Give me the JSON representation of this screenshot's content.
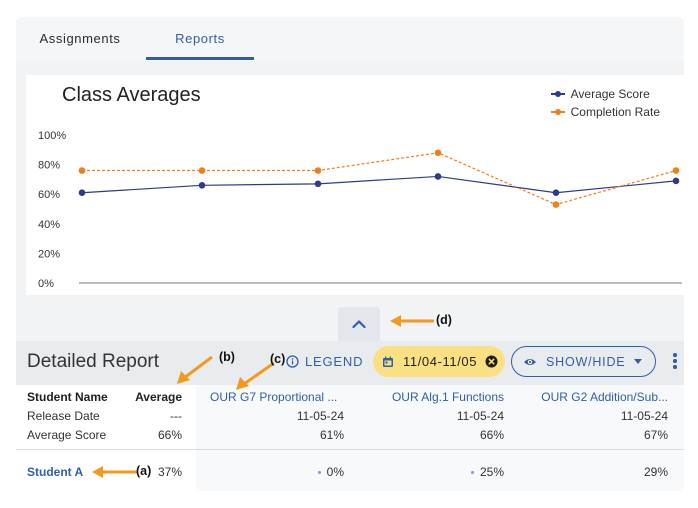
{
  "tabs": [
    {
      "label": "Assignments"
    },
    {
      "label": "Reports"
    }
  ],
  "chart": {
    "title": "Class Averages",
    "legend": [
      "Average Score",
      "Completion Rate"
    ]
  },
  "chart_data": {
    "type": "line",
    "title": "Class Averages",
    "yticks": [
      "100%",
      "80%",
      "60%",
      "40%",
      "20%",
      "0%"
    ],
    "ylim": [
      0,
      100
    ],
    "x": [
      1,
      2,
      3,
      4,
      5,
      6
    ],
    "series": [
      {
        "name": "Average Score",
        "values": [
          61,
          66,
          67,
          72,
          61,
          69
        ],
        "color": "#2e3a8c",
        "dashed": false
      },
      {
        "name": "Completion Rate",
        "values": [
          76,
          76,
          76,
          88,
          53,
          76
        ],
        "color": "#f07f1a",
        "dashed": true
      }
    ]
  },
  "report": {
    "title": "Detailed Report",
    "legend_label": "LEGEND",
    "date_range": "11/04-11/05",
    "showhide_label": "SHOW/HIDE"
  },
  "table": {
    "headers": [
      "Student Name",
      "Average",
      "OUR G7 Proportional ...",
      "OUR Alg.1 Functions",
      "OUR G2 Addition/Sub..."
    ],
    "release_row": [
      "Release Date",
      "---",
      "11-05-24",
      "11-05-24",
      "11-05-24"
    ],
    "score_row": [
      "Average Score",
      "66%",
      "61%",
      "66%",
      "67%"
    ],
    "students": [
      {
        "name": "Student A",
        "average": "37%",
        "scores": [
          "0%",
          "25%",
          "29%"
        ]
      }
    ]
  },
  "annotations": [
    "(a)",
    "(b)",
    "(c)",
    "(d)"
  ],
  "colors": {
    "accent": "#2f5fa8",
    "annotation": "#f39a1e",
    "chip": "#fbe083"
  }
}
